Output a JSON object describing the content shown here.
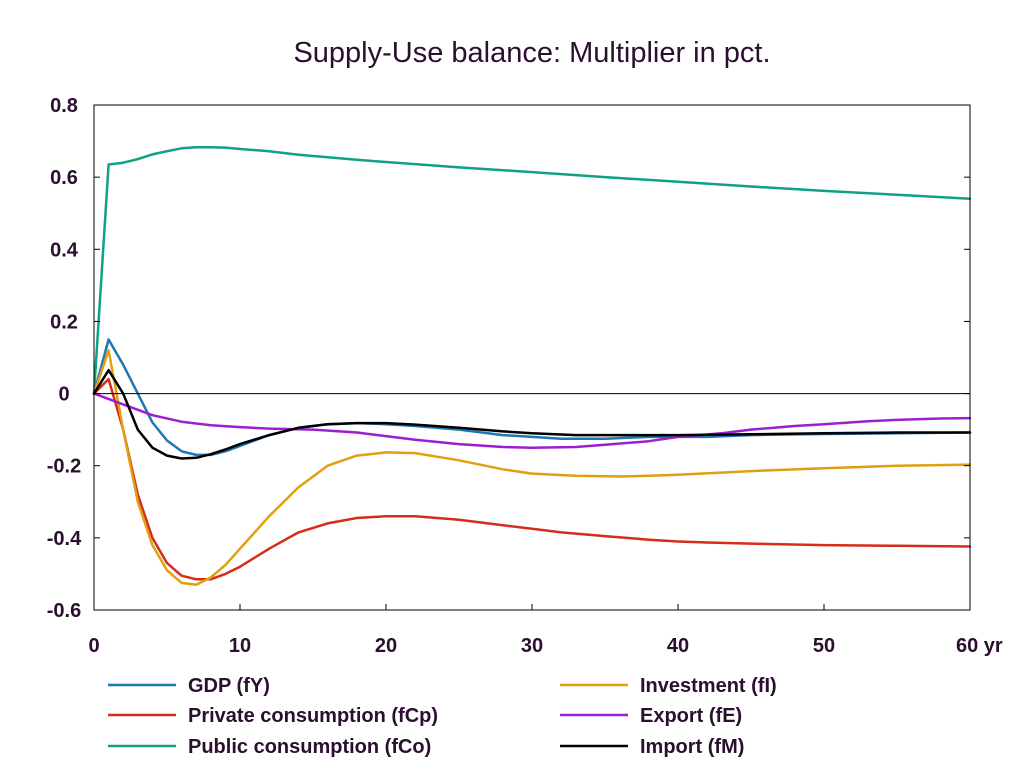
{
  "chart_data": {
    "type": "line",
    "title": "Supply-Use balance: Multiplier in pct.",
    "xlabel": "",
    "ylabel": "",
    "x_unit_label": "yr",
    "xlim": [
      0,
      60
    ],
    "ylim": [
      -0.6,
      0.8
    ],
    "xticks": [
      0,
      10,
      20,
      30,
      40,
      50,
      60
    ],
    "xtick_labels": [
      "0",
      "10",
      "20",
      "30",
      "40",
      "50",
      "60 yr"
    ],
    "yticks": [
      -0.6,
      -0.4,
      -0.2,
      0,
      0.2,
      0.4,
      0.6,
      0.8
    ],
    "ytick_labels": [
      "-0.6",
      "-0.4",
      "-0.2",
      "0",
      "0.2",
      "0.4",
      "0.6",
      "0.8"
    ],
    "zero_line": true,
    "grid": false,
    "legend_position": "bottom",
    "series": [
      {
        "name": "GDP (fY)",
        "color": "#1f77b4",
        "x": [
          0,
          1,
          2,
          3,
          4,
          5,
          6,
          7,
          8,
          9,
          10,
          12,
          14,
          16,
          18,
          20,
          22,
          25,
          28,
          30,
          32,
          35,
          38,
          40,
          42,
          45,
          50,
          55,
          60
        ],
        "y": [
          0,
          0.15,
          0.08,
          0.0,
          -0.08,
          -0.13,
          -0.16,
          -0.17,
          -0.17,
          -0.16,
          -0.145,
          -0.115,
          -0.095,
          -0.085,
          -0.082,
          -0.085,
          -0.09,
          -0.1,
          -0.115,
          -0.12,
          -0.125,
          -0.125,
          -0.12,
          -0.12,
          -0.12,
          -0.115,
          -0.112,
          -0.11,
          -0.108
        ]
      },
      {
        "name": "Private consumption (fCp)",
        "color": "#d62c1a",
        "x": [
          0,
          1,
          2,
          3,
          4,
          5,
          6,
          7,
          8,
          9,
          10,
          12,
          14,
          16,
          18,
          20,
          22,
          25,
          28,
          30,
          32,
          35,
          38,
          40,
          42,
          45,
          50,
          55,
          60
        ],
        "y": [
          0,
          0.04,
          -0.1,
          -0.28,
          -0.4,
          -0.47,
          -0.505,
          -0.515,
          -0.515,
          -0.5,
          -0.48,
          -0.43,
          -0.385,
          -0.36,
          -0.345,
          -0.34,
          -0.34,
          -0.35,
          -0.365,
          -0.375,
          -0.385,
          -0.395,
          -0.405,
          -0.41,
          -0.413,
          -0.416,
          -0.42,
          -0.422,
          -0.424
        ]
      },
      {
        "name": "Public consumption (fCo)",
        "color": "#12a085",
        "x": [
          0,
          1,
          2,
          3,
          4,
          5,
          6,
          7,
          8,
          9,
          10,
          12,
          14,
          16,
          18,
          20,
          25,
          30,
          35,
          40,
          45,
          50,
          55,
          60
        ],
        "y": [
          0,
          0.635,
          0.64,
          0.65,
          0.663,
          0.672,
          0.68,
          0.683,
          0.683,
          0.682,
          0.678,
          0.672,
          0.662,
          0.655,
          0.648,
          0.642,
          0.627,
          0.614,
          0.6,
          0.587,
          0.574,
          0.562,
          0.551,
          0.54
        ]
      },
      {
        "name": "Investment (fI)",
        "color": "#e0a010",
        "x": [
          0,
          1,
          2,
          3,
          4,
          5,
          6,
          7,
          8,
          9,
          10,
          12,
          14,
          16,
          18,
          20,
          22,
          25,
          28,
          30,
          33,
          36,
          38,
          40,
          45,
          50,
          55,
          60
        ],
        "y": [
          0,
          0.12,
          -0.1,
          -0.3,
          -0.42,
          -0.49,
          -0.525,
          -0.53,
          -0.51,
          -0.475,
          -0.43,
          -0.34,
          -0.26,
          -0.2,
          -0.172,
          -0.163,
          -0.165,
          -0.185,
          -0.21,
          -0.222,
          -0.228,
          -0.23,
          -0.228,
          -0.225,
          -0.215,
          -0.207,
          -0.2,
          -0.197
        ]
      },
      {
        "name": "Export (fE)",
        "color": "#9b1fd1",
        "x": [
          0,
          2,
          4,
          6,
          8,
          10,
          12,
          15,
          18,
          20,
          22,
          25,
          28,
          30,
          33,
          35,
          38,
          40,
          43,
          45,
          48,
          50,
          53,
          55,
          58,
          60
        ],
        "y": [
          0,
          -0.03,
          -0.06,
          -0.078,
          -0.088,
          -0.093,
          -0.097,
          -0.1,
          -0.108,
          -0.118,
          -0.128,
          -0.14,
          -0.148,
          -0.15,
          -0.148,
          -0.142,
          -0.132,
          -0.12,
          -0.11,
          -0.1,
          -0.09,
          -0.085,
          -0.077,
          -0.073,
          -0.069,
          -0.068
        ]
      },
      {
        "name": "Import (fM)",
        "color": "#000000",
        "x": [
          0,
          1,
          2,
          3,
          4,
          5,
          6,
          7,
          8,
          9,
          10,
          12,
          14,
          16,
          18,
          20,
          22,
          25,
          28,
          30,
          33,
          36,
          40,
          45,
          50,
          55,
          60
        ],
        "y": [
          0,
          0.065,
          0.0,
          -0.1,
          -0.15,
          -0.172,
          -0.18,
          -0.178,
          -0.168,
          -0.155,
          -0.14,
          -0.115,
          -0.095,
          -0.085,
          -0.082,
          -0.082,
          -0.086,
          -0.095,
          -0.105,
          -0.11,
          -0.115,
          -0.115,
          -0.115,
          -0.113,
          -0.11,
          -0.108,
          -0.108
        ]
      }
    ]
  }
}
